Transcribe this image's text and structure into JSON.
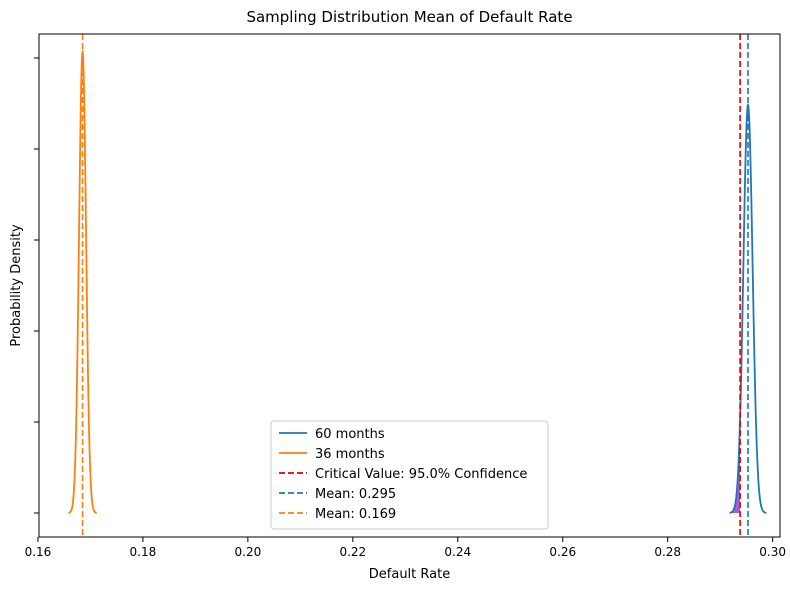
{
  "chart_data": {
    "type": "line",
    "title": "Sampling Distribution Mean of Default Rate",
    "xlabel": "Default Rate",
    "ylabel": "Probability Density",
    "xlim": [
      0.1602,
      0.3014
    ],
    "x_ticks": [
      0.16,
      0.18,
      0.2,
      0.22,
      0.24,
      0.26,
      0.28,
      0.3
    ],
    "x_tick_labels": [
      "0.16",
      "0.18",
      "0.20",
      "0.22",
      "0.24",
      "0.26",
      "0.28",
      "0.30"
    ],
    "y_tick_count": 6,
    "y_tick_labels_visible": false,
    "grid": false,
    "legend_position": "lower-center",
    "series": [
      {
        "name": "60 months",
        "kind": "density",
        "mean": 0.2953,
        "std": 0.00088,
        "x_range": [
          0.2918,
          0.2988
        ],
        "peak": 0.885,
        "color": "#1f77b4"
      },
      {
        "name": "36 months",
        "kind": "density",
        "mean": 0.1685,
        "std": 0.00067,
        "x_range": [
          0.1658,
          0.1712
        ],
        "peak": 1.0,
        "color": "#ff7f0e"
      }
    ],
    "vlines": [
      {
        "name": "Critical Value: 95.0% Confidence",
        "x": 0.2938,
        "color": "#e00000",
        "style": "dashed"
      },
      {
        "name": "Mean:  0.295",
        "x": 0.2953,
        "color": "#1f77b4",
        "style": "dashed"
      },
      {
        "name": "Mean:  0.169",
        "x": 0.1685,
        "color": "#ff7f0e",
        "style": "dashed"
      }
    ],
    "shaded_region": {
      "from": 0.2918,
      "to": 0.2938,
      "series": "60 months",
      "color": "#9b3fd1"
    },
    "legend": [
      {
        "label": "60 months",
        "color": "#1f77b4",
        "style": "solid"
      },
      {
        "label": "36 months",
        "color": "#ff7f0e",
        "style": "solid"
      },
      {
        "label": "Critical Value: 95.0% Confidence",
        "color": "#e00000",
        "style": "dashed"
      },
      {
        "label": "Mean:  0.295",
        "color": "#1f77b4",
        "style": "dashed"
      },
      {
        "label": "Mean:  0.169",
        "color": "#ff7f0e",
        "style": "dashed"
      }
    ]
  }
}
